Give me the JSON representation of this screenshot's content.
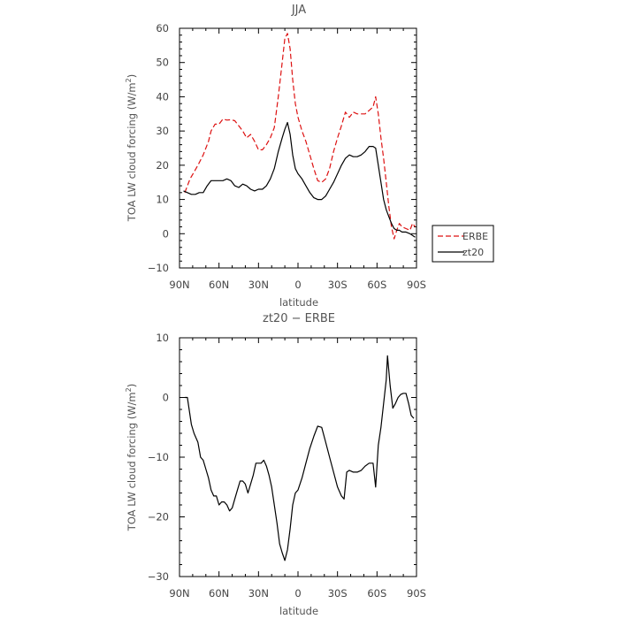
{
  "chart_data": [
    {
      "type": "line",
      "title": "JJA",
      "xlabel": "latitude",
      "ylabel_main": "TOA LW cloud forcing (W/m",
      "ylabel_sup": "2",
      "ylabel_close": ")",
      "xlim": [
        90,
        -90
      ],
      "ylim": [
        -10,
        60
      ],
      "x_ticks": [
        90,
        60,
        30,
        0,
        -30,
        -60,
        -90
      ],
      "x_tick_labels": [
        "90N",
        "60N",
        "30N",
        "0",
        "30S",
        "60S",
        "90S"
      ],
      "y_ticks": [
        -10,
        0,
        10,
        20,
        30,
        40,
        50,
        60
      ],
      "y_tick_labels": [
        "−10",
        "0",
        "10",
        "20",
        "30",
        "40",
        "50",
        "60"
      ],
      "legend_position": "right-bottom",
      "series": [
        {
          "name": "ERBE",
          "color": "#dd1111",
          "dash": "6,3",
          "points": [
            [
              86,
              12
            ],
            [
              82,
              16
            ],
            [
              79,
              18
            ],
            [
              76,
              20
            ],
            [
              72,
              23
            ],
            [
              68,
              27
            ],
            [
              66,
              30
            ],
            [
              63,
              32
            ],
            [
              60,
              32
            ],
            [
              57,
              33.5
            ],
            [
              54,
              33.2
            ],
            [
              51,
              33.3
            ],
            [
              48,
              33
            ],
            [
              45,
              31.5
            ],
            [
              42,
              30
            ],
            [
              39,
              28
            ],
            [
              36,
              29
            ],
            [
              33,
              27
            ],
            [
              30,
              24.5
            ],
            [
              27,
              24.5
            ],
            [
              24,
              26
            ],
            [
              21,
              28
            ],
            [
              18,
              31
            ],
            [
              15,
              40
            ],
            [
              12,
              50
            ],
            [
              10,
              57
            ],
            [
              8,
              58.5
            ],
            [
              6,
              54
            ],
            [
              4,
              45
            ],
            [
              2,
              38
            ],
            [
              0,
              34
            ],
            [
              -3,
              30
            ],
            [
              -6,
              27
            ],
            [
              -9,
              23
            ],
            [
              -12,
              19
            ],
            [
              -15,
              15.5
            ],
            [
              -18,
              15
            ],
            [
              -21,
              16
            ],
            [
              -24,
              19
            ],
            [
              -27,
              24
            ],
            [
              -30,
              28
            ],
            [
              -33,
              31.5
            ],
            [
              -36,
              35.5
            ],
            [
              -39,
              34
            ],
            [
              -42,
              35.5
            ],
            [
              -45,
              35
            ],
            [
              -48,
              35
            ],
            [
              -51,
              35
            ],
            [
              -54,
              36
            ],
            [
              -57,
              37
            ],
            [
              -59,
              40
            ],
            [
              -61,
              35
            ],
            [
              -63,
              28
            ],
            [
              -65,
              22
            ],
            [
              -67,
              15
            ],
            [
              -69,
              8
            ],
            [
              -71,
              2
            ],
            [
              -73,
              -1.5
            ],
            [
              -75,
              1
            ],
            [
              -77,
              3
            ],
            [
              -79,
              2
            ],
            [
              -82,
              1.5
            ],
            [
              -85,
              1
            ],
            [
              -87,
              3
            ],
            [
              -89,
              2
            ]
          ]
        },
        {
          "name": "zt20",
          "color": "#000000",
          "dash": "",
          "points": [
            [
              87,
              12.5
            ],
            [
              84,
              12
            ],
            [
              81,
              11.5
            ],
            [
              78,
              11.5
            ],
            [
              75,
              12
            ],
            [
              72,
              12
            ],
            [
              69,
              14
            ],
            [
              66,
              15.5
            ],
            [
              63,
              15.5
            ],
            [
              60,
              15.5
            ],
            [
              57,
              15.5
            ],
            [
              54,
              16
            ],
            [
              51,
              15.5
            ],
            [
              48,
              14
            ],
            [
              45,
              13.5
            ],
            [
              42,
              14.5
            ],
            [
              39,
              14
            ],
            [
              36,
              13
            ],
            [
              33,
              12.5
            ],
            [
              30,
              13
            ],
            [
              27,
              13
            ],
            [
              24,
              14
            ],
            [
              21,
              16
            ],
            [
              18,
              19
            ],
            [
              15,
              24
            ],
            [
              12,
              28
            ],
            [
              10,
              30.5
            ],
            [
              8,
              32.5
            ],
            [
              6,
              29
            ],
            [
              4,
              23
            ],
            [
              2,
              19
            ],
            [
              0,
              17.5
            ],
            [
              -3,
              16
            ],
            [
              -6,
              14
            ],
            [
              -9,
              12
            ],
            [
              -12,
              10.5
            ],
            [
              -15,
              10
            ],
            [
              -18,
              10
            ],
            [
              -21,
              11
            ],
            [
              -24,
              13
            ],
            [
              -27,
              15
            ],
            [
              -30,
              17.5
            ],
            [
              -33,
              20
            ],
            [
              -36,
              22
            ],
            [
              -39,
              23
            ],
            [
              -42,
              22.5
            ],
            [
              -45,
              22.5
            ],
            [
              -48,
              23
            ],
            [
              -51,
              24
            ],
            [
              -54,
              25.5
            ],
            [
              -57,
              25.5
            ],
            [
              -59,
              25
            ],
            [
              -61,
              20
            ],
            [
              -63,
              15
            ],
            [
              -65,
              10
            ],
            [
              -67,
              7
            ],
            [
              -69,
              5
            ],
            [
              -71,
              3
            ],
            [
              -73,
              1.5
            ],
            [
              -75,
              1
            ],
            [
              -77,
              1
            ],
            [
              -79,
              0.5
            ],
            [
              -82,
              0.5
            ],
            [
              -85,
              0
            ],
            [
              -87,
              -0.5
            ],
            [
              -89,
              -1
            ]
          ]
        }
      ]
    },
    {
      "type": "line",
      "title": "zt20 − ERBE",
      "xlabel": "latitude",
      "ylabel_main": "TOA LW cloud forcing (W/m",
      "ylabel_sup": "2",
      "ylabel_close": ")",
      "xlim": [
        90,
        -90
      ],
      "ylim": [
        -30,
        10
      ],
      "x_ticks": [
        90,
        60,
        30,
        0,
        -30,
        -60,
        -90
      ],
      "x_tick_labels": [
        "90N",
        "60N",
        "30N",
        "0",
        "30S",
        "60S",
        "90S"
      ],
      "y_ticks": [
        -30,
        -20,
        -10,
        0,
        10
      ],
      "y_tick_labels": [
        "−30",
        "−20",
        "−10",
        "0",
        "10"
      ],
      "series": [
        {
          "name": "",
          "color": "#000000",
          "dash": "",
          "points": [
            [
              86,
              0
            ],
            [
              84,
              0
            ],
            [
              81,
              -4.5
            ],
            [
              79,
              -6
            ],
            [
              76,
              -7.5
            ],
            [
              74,
              -10
            ],
            [
              72,
              -10.5
            ],
            [
              70,
              -12
            ],
            [
              68,
              -13.5
            ],
            [
              66,
              -15.5
            ],
            [
              64,
              -16.5
            ],
            [
              62,
              -16.5
            ],
            [
              60,
              -18
            ],
            [
              58,
              -17.5
            ],
            [
              56,
              -17.5
            ],
            [
              54,
              -18
            ],
            [
              52,
              -19
            ],
            [
              50,
              -18.5
            ],
            [
              48,
              -17
            ],
            [
              46,
              -15.5
            ],
            [
              44,
              -14
            ],
            [
              42,
              -14
            ],
            [
              40,
              -14.5
            ],
            [
              38,
              -16
            ],
            [
              36,
              -14.5
            ],
            [
              34,
              -13
            ],
            [
              32,
              -11
            ],
            [
              30,
              -11
            ],
            [
              28,
              -11
            ],
            [
              26,
              -10.5
            ],
            [
              24,
              -11.5
            ],
            [
              22,
              -13
            ],
            [
              20,
              -15
            ],
            [
              18,
              -18
            ],
            [
              16,
              -21
            ],
            [
              14,
              -24.5
            ],
            [
              12,
              -26
            ],
            [
              10,
              -27.3
            ],
            [
              8,
              -25.5
            ],
            [
              6,
              -22
            ],
            [
              4,
              -18
            ],
            [
              2,
              -16
            ],
            [
              0,
              -15.5
            ],
            [
              -3,
              -13.5
            ],
            [
              -6,
              -11
            ],
            [
              -9,
              -8.5
            ],
            [
              -12,
              -6.5
            ],
            [
              -15,
              -4.8
            ],
            [
              -18,
              -5
            ],
            [
              -21,
              -7.5
            ],
            [
              -24,
              -10
            ],
            [
              -27,
              -12.5
            ],
            [
              -30,
              -15
            ],
            [
              -33,
              -16.5
            ],
            [
              -35,
              -17
            ],
            [
              -37,
              -12.5
            ],
            [
              -39,
              -12.2
            ],
            [
              -42,
              -12.5
            ],
            [
              -45,
              -12.5
            ],
            [
              -48,
              -12.2
            ],
            [
              -51,
              -11.5
            ],
            [
              -54,
              -11
            ],
            [
              -57,
              -11
            ],
            [
              -59,
              -15
            ],
            [
              -61,
              -8
            ],
            [
              -63,
              -5
            ],
            [
              -65,
              -1
            ],
            [
              -67,
              3
            ],
            [
              -68,
              7
            ],
            [
              -70,
              2
            ],
            [
              -72,
              -1.8
            ],
            [
              -74,
              -1
            ],
            [
              -76,
              0
            ],
            [
              -78,
              0.5
            ],
            [
              -80,
              0.7
            ],
            [
              -82,
              0.7
            ],
            [
              -84,
              -1
            ],
            [
              -86,
              -3
            ],
            [
              -88,
              -3.5
            ]
          ]
        }
      ]
    }
  ]
}
